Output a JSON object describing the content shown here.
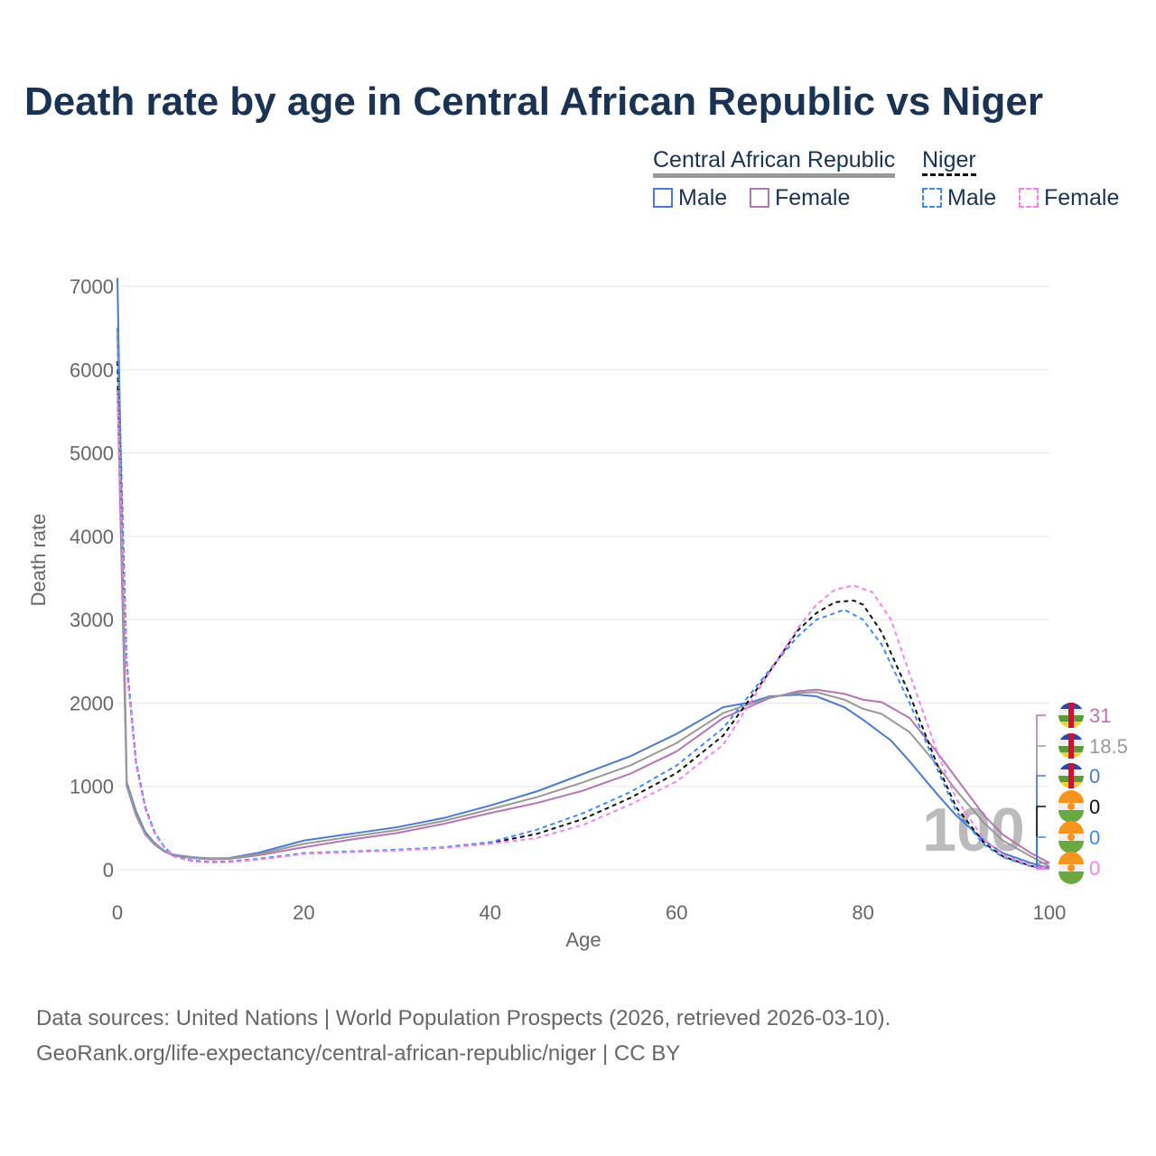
{
  "title": "Death rate by age in Central African Republic vs Niger",
  "legend": {
    "group1": "Central African Republic",
    "group2": "Niger",
    "male": "Male",
    "female": "Female"
  },
  "source_line1": "Data sources: United Nations | World Population Prospects (2026, retrieved 2026-03-10).",
  "source_line2": "GeoRank.org/life-expectancy/central-african-republic/niger | CC BY",
  "chart_data": {
    "type": "line",
    "title": "Death rate by age in Central African Republic vs Niger",
    "xlabel": "Age",
    "ylabel": "Death rate",
    "xlim": [
      0,
      100
    ],
    "ylim": [
      0,
      7000
    ],
    "xticks": [
      "0",
      "20",
      "40",
      "60",
      "80",
      "100"
    ],
    "yticks": [
      "0",
      "1000",
      "2000",
      "3000",
      "4000",
      "5000",
      "6000",
      "7000"
    ],
    "watermark": "100",
    "series": [
      {
        "name": "Central African Republic Male",
        "color": "#4a7bd0",
        "dash": "",
        "end_label": "0",
        "x": [
          0,
          1,
          2,
          3,
          4,
          5,
          6,
          8,
          10,
          12,
          15,
          18,
          20,
          25,
          30,
          35,
          40,
          45,
          50,
          55,
          60,
          65,
          68,
          70,
          73,
          75,
          78,
          80,
          83,
          85,
          88,
          90,
          93,
          95,
          98,
          100
        ],
        "y": [
          7100,
          1050,
          700,
          450,
          320,
          230,
          180,
          150,
          135,
          140,
          200,
          290,
          350,
          430,
          510,
          620,
          770,
          940,
          1150,
          1360,
          1630,
          1950,
          2010,
          2080,
          2100,
          2080,
          1950,
          1800,
          1550,
          1300,
          900,
          650,
          350,
          200,
          80,
          20
        ]
      },
      {
        "name": "Central African Republic Female",
        "color": "#b574b5",
        "dash": "",
        "end_label": "31",
        "x": [
          0,
          1,
          2,
          3,
          4,
          5,
          6,
          8,
          10,
          12,
          15,
          18,
          20,
          25,
          30,
          35,
          40,
          45,
          50,
          55,
          60,
          65,
          70,
          73,
          75,
          78,
          80,
          82,
          85,
          88,
          90,
          93,
          95,
          98,
          100
        ],
        "y": [
          5800,
          1000,
          650,
          420,
          300,
          220,
          170,
          140,
          125,
          130,
          170,
          230,
          270,
          360,
          440,
          550,
          680,
          800,
          950,
          1150,
          1420,
          1820,
          2060,
          2140,
          2160,
          2110,
          2040,
          2010,
          1820,
          1400,
          1100,
          650,
          420,
          200,
          80
        ]
      },
      {
        "name": "Central African Republic",
        "color": "#999999",
        "dash": "",
        "end_label": "18.5",
        "x": [
          0,
          1,
          2,
          3,
          4,
          5,
          6,
          8,
          10,
          12,
          15,
          18,
          20,
          25,
          30,
          35,
          40,
          45,
          50,
          55,
          60,
          65,
          70,
          73,
          75,
          78,
          80,
          82,
          85,
          88,
          90,
          93,
          95,
          98,
          100
        ],
        "y": [
          6450,
          1020,
          670,
          430,
          310,
          225,
          175,
          145,
          130,
          135,
          185,
          260,
          310,
          395,
          475,
          585,
          725,
          870,
          1050,
          1250,
          1520,
          1880,
          2070,
          2120,
          2130,
          2040,
          1930,
          1870,
          1650,
          1250,
          950,
          560,
          350,
          160,
          40
        ]
      },
      {
        "name": "Niger",
        "color": "#111111",
        "dash": "5,4",
        "end_label": "0",
        "x": [
          0,
          1,
          2,
          3,
          4,
          5,
          6,
          8,
          10,
          12,
          15,
          18,
          20,
          25,
          30,
          35,
          40,
          45,
          50,
          55,
          60,
          65,
          70,
          73,
          75,
          77,
          79,
          80,
          82,
          85,
          88,
          90,
          93,
          95,
          98,
          100
        ],
        "y": [
          6100,
          2450,
          1280,
          740,
          440,
          275,
          165,
          105,
          90,
          95,
          125,
          165,
          195,
          215,
          235,
          265,
          320,
          430,
          610,
          860,
          1160,
          1610,
          2380,
          2870,
          3080,
          3210,
          3230,
          3180,
          2850,
          2100,
          1250,
          750,
          320,
          160,
          45,
          10
        ]
      },
      {
        "name": "Niger Male",
        "color": "#3d8af7",
        "dash": "5,4",
        "end_label": "0",
        "x": [
          0,
          1,
          2,
          3,
          4,
          5,
          6,
          8,
          10,
          12,
          15,
          18,
          20,
          25,
          30,
          35,
          40,
          45,
          50,
          55,
          60,
          65,
          70,
          73,
          75,
          78,
          80,
          82,
          85,
          88,
          90,
          93,
          95,
          98,
          100
        ],
        "y": [
          6500,
          2500,
          1300,
          750,
          450,
          280,
          170,
          110,
          95,
          100,
          130,
          170,
          200,
          220,
          240,
          270,
          330,
          480,
          680,
          930,
          1250,
          1700,
          2400,
          2800,
          3000,
          3120,
          3000,
          2700,
          2000,
          1200,
          700,
          300,
          150,
          40,
          10
        ]
      },
      {
        "name": "Niger Female",
        "color": "#f77ff0",
        "dash": "5,4",
        "end_label": "0",
        "x": [
          0,
          1,
          2,
          3,
          4,
          5,
          6,
          8,
          10,
          12,
          15,
          18,
          20,
          25,
          30,
          35,
          40,
          45,
          50,
          55,
          60,
          65,
          70,
          73,
          75,
          77,
          79,
          81,
          83,
          85,
          88,
          90,
          93,
          95,
          98,
          100
        ],
        "y": [
          5700,
          2400,
          1250,
          720,
          430,
          270,
          160,
          100,
          85,
          90,
          120,
          160,
          190,
          210,
          230,
          260,
          310,
          380,
          540,
          780,
          1060,
          1500,
          2370,
          2900,
          3180,
          3360,
          3410,
          3330,
          3000,
          2350,
          1400,
          850,
          360,
          180,
          50,
          10
        ]
      }
    ]
  }
}
